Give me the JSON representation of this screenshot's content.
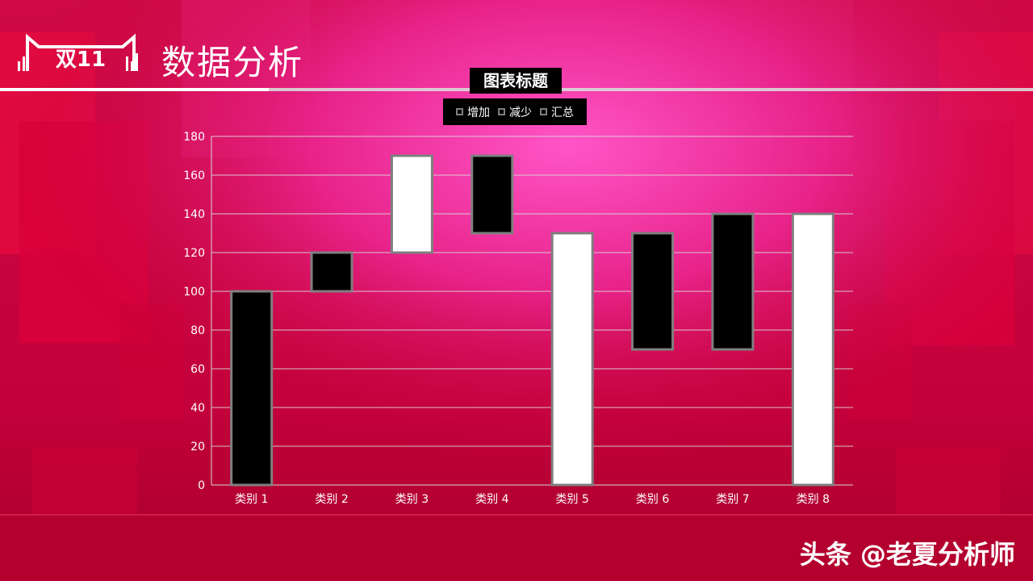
{
  "header": {
    "logo_text": "双11",
    "page_title": "数据分析"
  },
  "watermark": "头条 @老夏分析师",
  "colors": {
    "background": "#c8003a",
    "glow": "#ff4fc0",
    "increase": "#000000",
    "decrease": "#000000",
    "total": "#ffffff",
    "bar_border": "#7f7f7f"
  },
  "chart_data": {
    "type": "bar",
    "subtype": "waterfall",
    "title": "图表标题",
    "legend": [
      "增加",
      "减少",
      "汇总"
    ],
    "legend_position": "top",
    "categories": [
      "类别 1",
      "类别 2",
      "类别 3",
      "类别 4",
      "类别 5",
      "类别 6",
      "类别 7",
      "类别 8"
    ],
    "bars": [
      {
        "category": "类别 1",
        "kind": "增加",
        "start": 0,
        "end": 100
      },
      {
        "category": "类别 2",
        "kind": "增加",
        "start": 100,
        "end": 120
      },
      {
        "category": "类别 3",
        "kind": "汇总",
        "start": 120,
        "end": 170
      },
      {
        "category": "类别 4",
        "kind": "减少",
        "start": 170,
        "end": 130
      },
      {
        "category": "类别 5",
        "kind": "汇总",
        "start": 0,
        "end": 130
      },
      {
        "category": "类别 6",
        "kind": "减少",
        "start": 130,
        "end": 70
      },
      {
        "category": "类别 7",
        "kind": "增加",
        "start": 70,
        "end": 140
      },
      {
        "category": "类别 8",
        "kind": "汇总",
        "start": 0,
        "end": 140
      }
    ],
    "ylim": [
      0,
      180
    ],
    "yticks": [
      0,
      20,
      40,
      60,
      80,
      100,
      120,
      140,
      160,
      180
    ],
    "grid": true
  }
}
